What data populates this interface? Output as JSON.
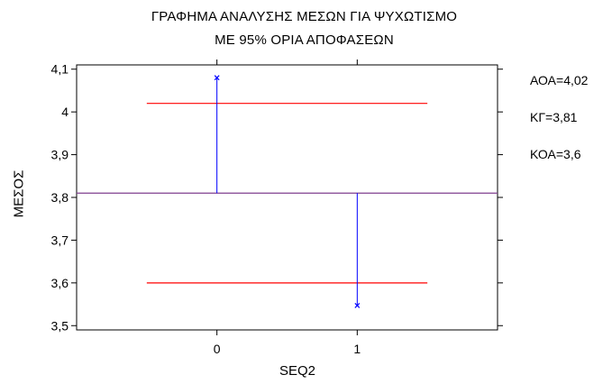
{
  "chart_data": {
    "type": "scatter",
    "title": "ΓΡΑΦΗΜΑ ΑΝΑΛΥΣΗΣ ΜΕΣΩΝ ΓΙΑ ΨΥΧΩΤΙΣΜΟ",
    "subtitle": "ΜΕ 95% ΟΡΙΑ ΑΠΟΦΑΣΕΩΝ",
    "xlabel": "SEQ2",
    "ylabel": "ΜΕΣΟΣ",
    "categories": [
      "0",
      "1"
    ],
    "x": [
      0,
      1
    ],
    "values": [
      4.08,
      3.547
    ],
    "xlim": [
      -1,
      2
    ],
    "ylim": [
      3.49,
      4.11
    ],
    "y_ticks": [
      3.5,
      3.6,
      3.7,
      3.8,
      3.9,
      4.0,
      4.1
    ],
    "y_tick_labels": [
      "3,5",
      "3,6",
      "3,7",
      "3,8",
      "3,9",
      "4",
      "4,1"
    ],
    "center_line": 3.81,
    "upper_decision_limit": 4.02,
    "lower_decision_limit": 3.6,
    "limit_labels": {
      "upper": "ΑΟΑ=4,02",
      "center": "ΚΓ=3,81",
      "lower": "ΚΟΑ=3,6"
    },
    "grid": false,
    "colors": {
      "limits": "#ff0000",
      "center": "#7f3f8f",
      "points": "#0000ff",
      "axes": "#000000"
    }
  }
}
